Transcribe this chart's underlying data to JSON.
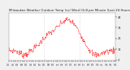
{
  "title": "Milwaukee Weather Outdoor Temp (vs) Wind Chill per Minute (Last 24 Hours)",
  "bg_color": "#f0f0f0",
  "plot_bg_color": "#ffffff",
  "line_color": "#ff0000",
  "line_width": 0.5,
  "ylim": [
    4,
    48
  ],
  "yticks": [
    4,
    14,
    24,
    34,
    44
  ],
  "ytick_labels": [
    "4",
    "14",
    "24",
    "34",
    "44"
  ],
  "num_points": 200,
  "vline_color": "#bbbbbb",
  "vline_style": ":",
  "vline_positions": [
    0.33,
    0.66
  ],
  "title_fontsize": 2.8,
  "tick_fontsize": 2.5,
  "xlabel_fontsize": 2.2
}
